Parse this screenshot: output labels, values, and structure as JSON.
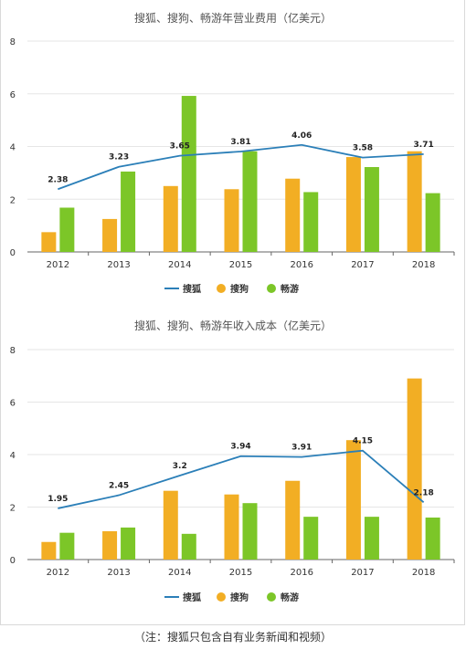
{
  "colors": {
    "sohu": "#2b7fb8",
    "sogou": "#f2ae24",
    "changyou": "#7cc628",
    "grid": "#e6e6e6",
    "axis": "#666666"
  },
  "legend": {
    "sohu": "搜狐",
    "sogou": "搜狗",
    "changyou": "畅游"
  },
  "footnote": "（注：搜狐只包含自有业务新闻和视频）",
  "chart_data": [
    {
      "type": "bar",
      "title": "搜狐、搜狗、畅游年营业费用（亿美元）",
      "categories": [
        "2012",
        "2013",
        "2014",
        "2015",
        "2016",
        "2017",
        "2018"
      ],
      "ylim": [
        0,
        8
      ],
      "yticks": [
        0,
        2,
        4,
        6,
        8
      ],
      "grid": true,
      "legend_position": "bottom",
      "series": [
        {
          "name": "搜狐",
          "type": "line",
          "values": [
            2.38,
            3.23,
            3.65,
            3.81,
            4.06,
            3.58,
            3.71
          ],
          "labels": [
            "2.38",
            "3.23",
            "3.65",
            "3.81",
            "4.06",
            "3.58",
            "3.71"
          ]
        },
        {
          "name": "搜狗",
          "type": "bar",
          "values": [
            0.75,
            1.25,
            2.5,
            2.38,
            2.78,
            3.6,
            3.82
          ]
        },
        {
          "name": "畅游",
          "type": "bar",
          "values": [
            1.68,
            3.05,
            5.92,
            3.82,
            2.27,
            3.22,
            2.23
          ]
        }
      ]
    },
    {
      "type": "bar",
      "title": "搜狐、搜狗、畅游年收入成本（亿美元）",
      "categories": [
        "2012",
        "2013",
        "2014",
        "2015",
        "2016",
        "2017",
        "2018"
      ],
      "ylim": [
        0,
        8
      ],
      "yticks": [
        0,
        2,
        4,
        6,
        8
      ],
      "grid": true,
      "legend_position": "bottom",
      "series": [
        {
          "name": "搜狐",
          "type": "line",
          "values": [
            1.95,
            2.45,
            3.2,
            3.94,
            3.91,
            4.15,
            2.18
          ],
          "labels": [
            "1.95",
            "2.45",
            "3.2",
            "3.94",
            "3.91",
            "4.15",
            "2.18"
          ]
        },
        {
          "name": "搜狗",
          "type": "bar",
          "values": [
            0.67,
            1.08,
            2.62,
            2.48,
            3.0,
            4.55,
            6.9
          ]
        },
        {
          "name": "畅游",
          "type": "bar",
          "values": [
            1.02,
            1.22,
            0.98,
            2.15,
            1.63,
            1.63,
            1.6
          ]
        }
      ]
    }
  ]
}
